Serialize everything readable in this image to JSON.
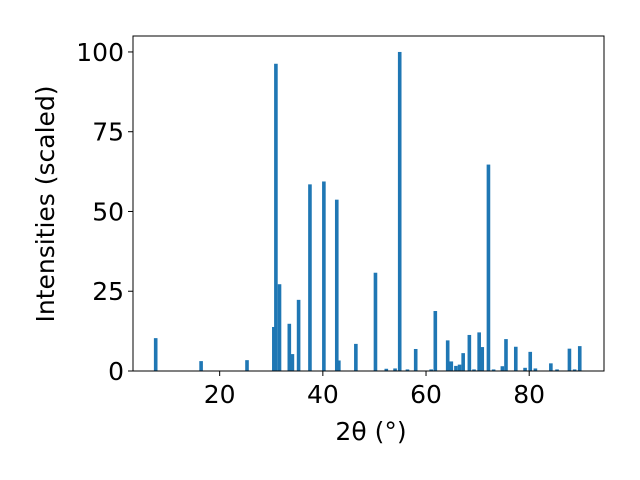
{
  "chart_data": {
    "type": "bar",
    "xlabel": "2θ (°)",
    "ylabel": "Intensities (scaled)",
    "xlim": [
      3.2,
      94.5
    ],
    "ylim": [
      0,
      105
    ],
    "xticks": [
      20,
      40,
      60,
      80
    ],
    "yticks": [
      0,
      25,
      50,
      75,
      100
    ],
    "color": "#1f77b4",
    "bar_width": 0.7,
    "x": [
      7.6,
      16.4,
      25.3,
      30.5,
      30.9,
      31.6,
      33.5,
      34.1,
      35.3,
      37.5,
      40.2,
      42.7,
      43.1,
      46.4,
      50.2,
      52.3,
      54.0,
      54.9,
      56.4,
      58.0,
      61.0,
      61.8,
      64.2,
      64.9,
      65.8,
      66.5,
      67.2,
      68.4,
      69.3,
      70.3,
      70.9,
      72.1,
      73.1,
      74.8,
      75.5,
      77.4,
      79.2,
      80.2,
      81.2,
      84.2,
      85.4,
      87.8,
      88.8,
      89.8
    ],
    "values": [
      10.3,
      3.1,
      3.4,
      13.8,
      96.3,
      27.2,
      14.8,
      5.3,
      22.3,
      58.5,
      59.4,
      53.7,
      3.3,
      8.5,
      30.8,
      0.7,
      0.8,
      100.0,
      0.5,
      6.9,
      0.5,
      18.8,
      9.6,
      3.0,
      1.6,
      2.0,
      5.6,
      11.3,
      0.5,
      12.1,
      7.5,
      64.7,
      0.5,
      1.5,
      10.0,
      7.6,
      1.0,
      6.0,
      0.8,
      2.4,
      0.5,
      7.0,
      0.5,
      7.8
    ]
  }
}
